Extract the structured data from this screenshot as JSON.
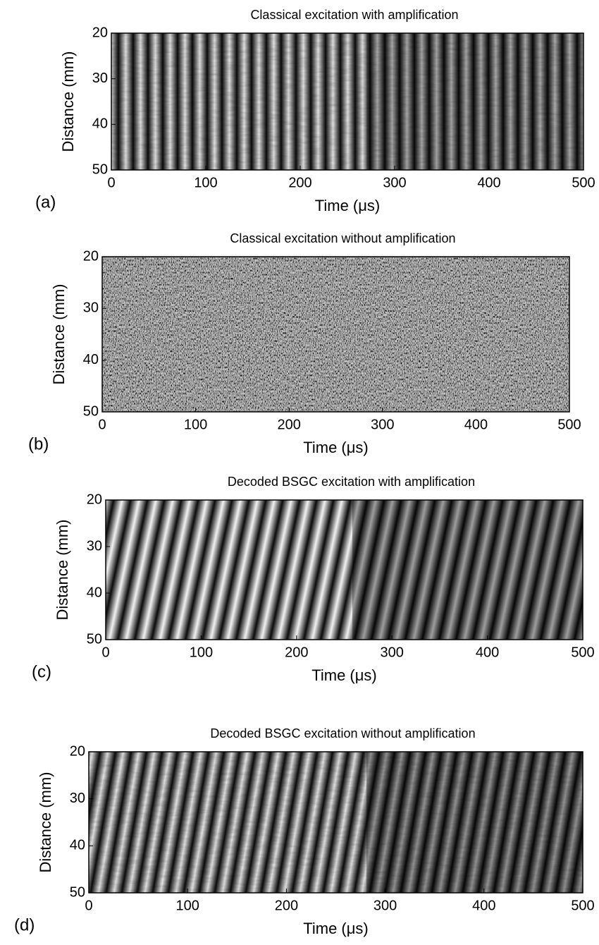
{
  "chart_data": [
    {
      "type": "heatmap",
      "title": "Classical  excitation with amplification",
      "panel_label": "(a)",
      "xlabel": "Time (μs)",
      "ylabel": "Distance (mm)",
      "xlim": [
        0,
        500
      ],
      "xticks": [
        0,
        100,
        200,
        300,
        400,
        500
      ],
      "ylim": [
        50,
        20
      ],
      "yticks": [
        20,
        30,
        40,
        50
      ]
    },
    {
      "type": "heatmap",
      "title": "Classical excitation without amplification",
      "panel_label": "(b)",
      "xlabel": "Time (μs)",
      "ylabel": "Distance (mm)",
      "xlim": [
        0,
        500
      ],
      "xticks": [
        0,
        100,
        200,
        300,
        400,
        500
      ],
      "ylim": [
        50,
        20
      ],
      "yticks": [
        20,
        30,
        40,
        50
      ]
    },
    {
      "type": "heatmap",
      "title": "Decoded BSGC excitation with amplification",
      "panel_label": "(c)",
      "xlabel": "Time (μs)",
      "ylabel": "Distance (mm)",
      "xlim": [
        0,
        500
      ],
      "xticks": [
        0,
        100,
        200,
        300,
        400,
        500
      ],
      "ylim": [
        50,
        20
      ],
      "yticks": [
        20,
        30,
        40,
        50
      ]
    },
    {
      "type": "heatmap",
      "title": "Decoded BSGC excitation without amplification",
      "panel_label": "(d)",
      "xlabel": "Time (μs)",
      "ylabel": "Distance (mm)",
      "xlim": [
        0,
        500
      ],
      "xticks": [
        0,
        100,
        200,
        300,
        400,
        500
      ],
      "ylim": [
        50,
        20
      ],
      "yticks": [
        20,
        30,
        40,
        50
      ]
    }
  ]
}
